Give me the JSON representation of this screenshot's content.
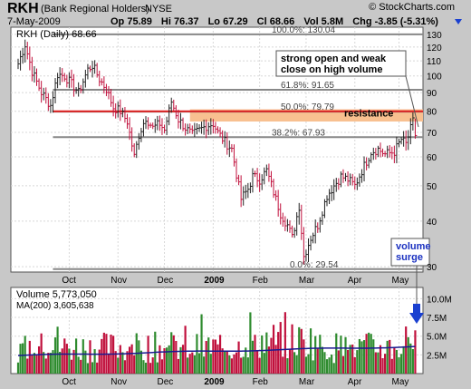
{
  "header": {
    "symbol": "RKH",
    "name": "(Bank Regional Holders)",
    "exchange": "NYSE",
    "date": "7-May-2009",
    "credit": "© StockCharts.com",
    "open": "Op 75.89",
    "high": "Hi 76.37",
    "low": "Lo 67.29",
    "close": "Cl 68.66",
    "volume": "Vol 5.8M",
    "change": "Chg -3.85 (-5.31%)"
  },
  "colors": {
    "up": "#2e8b2e",
    "down": "#c0103c",
    "resistance": "#e02020",
    "zone": "#f8c090",
    "ma": "#1a1a90"
  },
  "chart_data": [
    {
      "type": "ohlc",
      "legend": "RKH (Daily) 68.66",
      "ylim": [
        29,
        136
      ],
      "yscale": "log",
      "y_ticks": [
        30,
        40,
        50,
        60,
        70,
        80,
        90,
        100,
        110,
        120,
        130
      ],
      "x_labels": [
        "Oct",
        "Nov",
        "Dec",
        "2009",
        "Feb",
        "Mar",
        "Apr",
        "May"
      ],
      "x_label_positions": [
        22,
        43,
        63,
        84,
        104,
        124,
        145,
        164
      ],
      "n_bars": 172,
      "closes_at": [
        [
          0,
          108
        ],
        [
          3,
          122
        ],
        [
          6,
          103
        ],
        [
          10,
          90
        ],
        [
          14,
          83
        ],
        [
          17,
          101
        ],
        [
          20,
          100
        ],
        [
          23,
          95
        ],
        [
          26,
          90
        ],
        [
          30,
          104
        ],
        [
          32,
          107
        ],
        [
          35,
          98
        ],
        [
          38,
          92
        ],
        [
          41,
          82
        ],
        [
          44,
          80
        ],
        [
          47,
          75
        ],
        [
          50,
          60
        ],
        [
          52,
          69
        ],
        [
          55,
          77
        ],
        [
          58,
          72
        ],
        [
          61,
          74
        ],
        [
          63,
          71
        ],
        [
          66,
          85
        ],
        [
          69,
          76
        ],
        [
          72,
          72
        ],
        [
          75,
          69
        ],
        [
          78,
          71
        ],
        [
          81,
          73
        ],
        [
          84,
          74
        ],
        [
          86,
          70
        ],
        [
          89,
          66
        ],
        [
          92,
          63
        ],
        [
          96,
          46
        ],
        [
          99,
          49
        ],
        [
          101,
          53
        ],
        [
          104,
          52
        ],
        [
          107,
          55
        ],
        [
          110,
          48
        ],
        [
          113,
          42
        ],
        [
          116,
          39
        ],
        [
          118,
          36
        ],
        [
          121,
          44
        ],
        [
          123,
          32
        ],
        [
          126,
          36
        ],
        [
          129,
          39
        ],
        [
          133,
          47
        ],
        [
          136,
          50
        ],
        [
          139,
          53
        ],
        [
          142,
          52
        ],
        [
          145,
          50
        ],
        [
          148,
          55
        ],
        [
          152,
          62
        ],
        [
          155,
          63
        ],
        [
          158,
          61
        ],
        [
          162,
          62
        ],
        [
          165,
          67
        ],
        [
          167,
          65
        ],
        [
          170,
          75
        ],
        [
          171,
          68.66
        ]
      ],
      "fib_levels": [
        {
          "label": "100.0%: 130.04",
          "value": 130.04
        },
        {
          "label": "61.8%: 91.65",
          "value": 91.65
        },
        {
          "label": "50.0%: 79.79",
          "value": 79.79
        },
        {
          "label": "38.2%: 67.93",
          "value": 67.93
        },
        {
          "label": "0.0%: 29.54",
          "value": 29.54
        }
      ],
      "resistance": {
        "label": "resistance",
        "value": 80,
        "zone": [
          75,
          81
        ],
        "zone_start_bar": 74
      },
      "annotation": "strong open and weak\nclose on high volume"
    },
    {
      "type": "bar",
      "legend_volume": "Volume 5,773,050",
      "legend_ma": "MA(200) 3,605,638",
      "ylim": [
        0,
        11500000
      ],
      "y_ticks": [
        {
          "label": "2.5M",
          "value": 2500000
        },
        {
          "label": "5.0M",
          "value": 5000000
        },
        {
          "label": "7.5M",
          "value": 7500000
        },
        {
          "label": "10.0M",
          "value": 10000000
        }
      ],
      "x_labels": [
        "Oct",
        "Nov",
        "Dec",
        "2009",
        "Feb",
        "Mar",
        "Apr",
        "May"
      ],
      "ma_start": 2400000,
      "ma_end": 3605638,
      "last_volume": 5773050,
      "annotation": "volume\nsurge"
    }
  ]
}
